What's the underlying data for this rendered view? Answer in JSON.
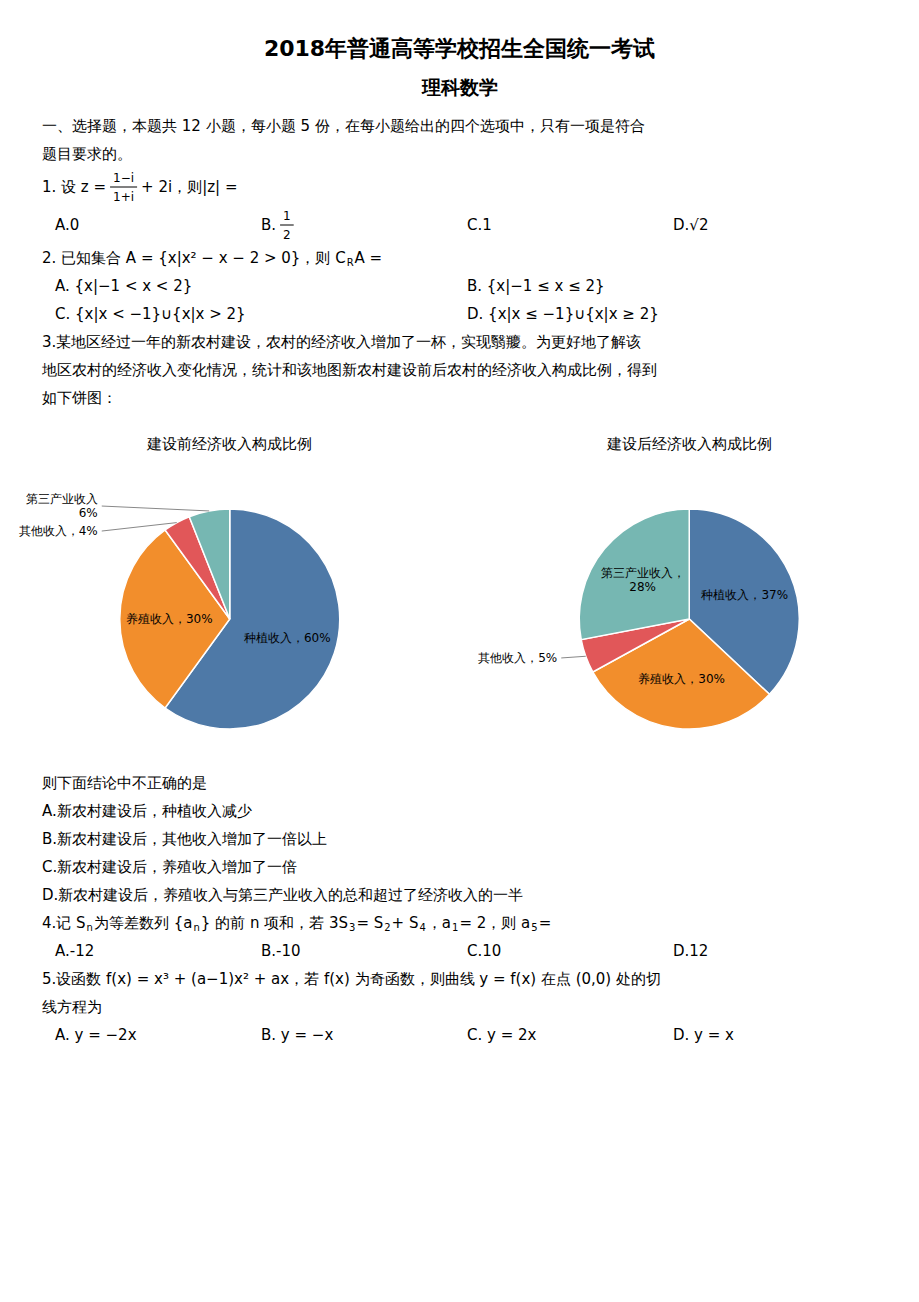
{
  "title": "2018年普通高等学校招生全国统一考试",
  "subtitle": "理科数学",
  "annotations": [
    [
      [
        [
          "一、选择题，本题共 12 小题，每小题 5 份，在每小题给出的四个选项中，只有一项是符合"
        ]
      ],
      [
        [
          "题目要求的。"
        ]
      ],
      [
        [
          "1.  设 z =",
          {
            "num": "1−i",
            "den": "1+i"
          },
          "+ 2i，则|z| ="
        ]
      ],
      [
        [
          "A.0"
        ],
        [
          "B.",
          {
            "num": "1",
            "den": "2"
          }
        ],
        [
          "C.1"
        ],
        [
          "D.√2"
        ]
      ],
      [
        [
          "2.    已知集合 A = {x|x² − x − 2 > 0}，则 C",
          {
            "sub": "R"
          },
          "A ="
        ]
      ],
      [
        [
          "A. {x|−1 < x < 2}"
        ],
        [
          "B. {x|−1 ≤ x ≤ 2}"
        ]
      ],
      [
        [
          "C. {x|x < −1}∪{x|x > 2}"
        ],
        [
          "D. {x|x ≤ −1}∪{x|x ≥ 2}"
        ]
      ],
      [
        [
          "3.某地区经过一年的新农村建设，农村的经济收入增加了一杯，实现翳羻。为更好地了解该"
        ]
      ],
      [
        [
          "地区农村的经济收入变化情况，统计和该地图新农村建设前后农村的经济收入构成比例，得到"
        ]
      ],
      [
        [
          "如下饼图："
        ]
      ]
    ],
    [
      [
        [
          "则下面结论中不正确的是"
        ]
      ],
      [
        [
          "A.新农村建设后，种植收入减少"
        ]
      ],
      [
        [
          "B.新农村建设后，其他收入增加了一倍以上"
        ]
      ],
      [
        [
          "C.新农村建设后，养殖收入增加了一倍"
        ]
      ],
      [
        [
          "D.新农村建设后，养殖收入与第三产业收入的总和超过了经济收入的一半"
        ]
      ],
      [
        [
          "4.记 S",
          {
            "sub": "n"
          },
          " 为等差数列 {a",
          {
            "sub": "n"
          },
          "} 的前 n 项和，若 3S",
          {
            "sub": "3"
          },
          " = S",
          {
            "sub": "2"
          },
          " + S",
          {
            "sub": "4"
          },
          "，a",
          {
            "sub": "1"
          },
          " = 2，则 a",
          {
            "sub": "5"
          },
          " ="
        ]
      ],
      [
        [
          "A.-12"
        ],
        [
          "B.-10"
        ],
        [
          "C.10"
        ],
        [
          "D.12"
        ]
      ],
      [
        [
          "5.设函数 f(x) = x³ + (a−1)x² + ax，若 f(x) 为奇函数，则曲线 y = f(x) 在点 (0,0) 处的切"
        ]
      ],
      [
        [
          "线方程为"
        ]
      ],
      [
        [
          "A. y = −2x"
        ],
        [
          "B. y = −x"
        ],
        [
          "C. y = 2x"
        ],
        [
          "D. y = x"
        ]
      ]
    ]
  ],
  "chart_data": [
    {
      "type": "pie",
      "title": "建设前经济收入构成比例",
      "values": [
        60,
        30,
        4,
        6
      ],
      "value_labels": [
        "种植收入，60%",
        "养殖收入，30%",
        "其他收入，4%",
        "第三产业收入\n6%"
      ],
      "data_labels": true
    },
    {
      "type": "pie",
      "title": "建设后经济收入构成比例",
      "values": [
        37,
        30,
        5,
        28
      ],
      "value_labels": [
        "种植收入，37%",
        "养殖收入，30%",
        "其他收入，5%",
        "第三产业收入，\n28%"
      ],
      "data_labels": true
    }
  ]
}
